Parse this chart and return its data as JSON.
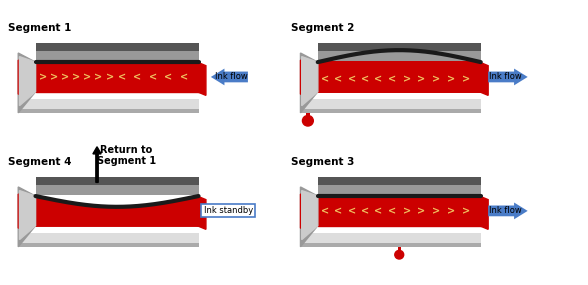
{
  "segments": [
    "Segment 1",
    "Segment 2",
    "Segment 3",
    "Segment 4"
  ],
  "labels": [
    "Ink flow",
    "Ink flow",
    "Ink flow",
    "Ink standby"
  ],
  "arrow_directions": [
    "left",
    "right",
    "right",
    "none"
  ],
  "crystal_bent": [
    false,
    true,
    false,
    true
  ],
  "crystal_bent_up": [
    false,
    true,
    false,
    false
  ],
  "drop_left": [
    false,
    true,
    false,
    false
  ],
  "drop_bottom": [
    false,
    false,
    true,
    false
  ],
  "red_color": "#cc0000",
  "blue_color": "#4a7cc7",
  "gray_light": "#c8c8c8",
  "gray_mid": "#999999",
  "gray_dark": "#555555",
  "crystal_color": "#1a1a1a",
  "arrow_color": "#f0c060",
  "drop_color": "#cc0000"
}
